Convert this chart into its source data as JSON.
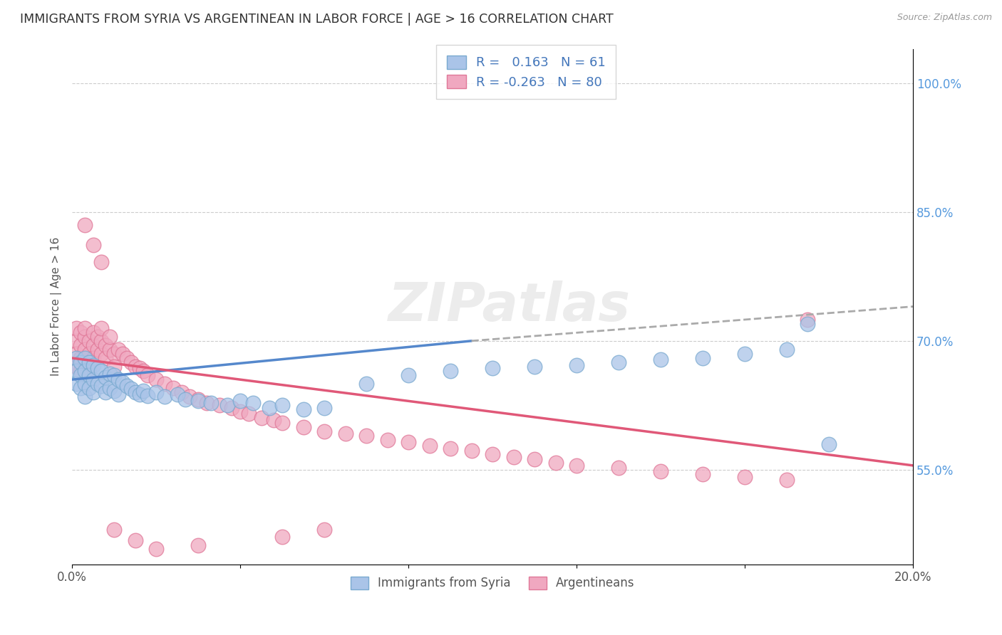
{
  "title": "IMMIGRANTS FROM SYRIA VS ARGENTINEAN IN LABOR FORCE | AGE > 16 CORRELATION CHART",
  "source": "Source: ZipAtlas.com",
  "ylabel": "In Labor Force | Age > 16",
  "xlim": [
    0.0,
    0.2
  ],
  "ylim": [
    0.44,
    1.04
  ],
  "xtick_positions": [
    0.0,
    0.04,
    0.08,
    0.12,
    0.16,
    0.2
  ],
  "xticklabels": [
    "0.0%",
    "",
    "",
    "",
    "",
    "20.0%"
  ],
  "yticks_right": [
    1.0,
    0.85,
    0.7,
    0.55
  ],
  "ytick_right_labels": [
    "100.0%",
    "85.0%",
    "70.0%",
    "55.0%"
  ],
  "R_syria": 0.163,
  "N_syria": 61,
  "R_arg": -0.263,
  "N_arg": 80,
  "color_syria_fill": "#aac4e8",
  "color_syria_edge": "#7aaad0",
  "color_arg_fill": "#f0a8c0",
  "color_arg_edge": "#e07898",
  "color_syria_line": "#5588cc",
  "color_arg_line": "#e05878",
  "watermark": "ZIPatlas",
  "background_color": "#ffffff",
  "grid_color": "#cccccc",
  "title_color": "#333333",
  "legend_text_color": "#4477bb",
  "right_axis_color": "#5599dd",
  "syria_x": [
    0.001,
    0.001,
    0.001,
    0.002,
    0.002,
    0.002,
    0.003,
    0.003,
    0.003,
    0.003,
    0.004,
    0.004,
    0.004,
    0.005,
    0.005,
    0.005,
    0.006,
    0.006,
    0.007,
    0.007,
    0.008,
    0.008,
    0.009,
    0.009,
    0.01,
    0.01,
    0.011,
    0.011,
    0.012,
    0.013,
    0.014,
    0.015,
    0.016,
    0.017,
    0.018,
    0.02,
    0.022,
    0.025,
    0.027,
    0.03,
    0.033,
    0.037,
    0.04,
    0.043,
    0.047,
    0.05,
    0.055,
    0.06,
    0.07,
    0.08,
    0.09,
    0.1,
    0.11,
    0.12,
    0.13,
    0.14,
    0.15,
    0.16,
    0.17,
    0.175,
    0.18
  ],
  "syria_y": [
    0.68,
    0.665,
    0.65,
    0.675,
    0.66,
    0.645,
    0.68,
    0.665,
    0.65,
    0.635,
    0.675,
    0.66,
    0.645,
    0.672,
    0.655,
    0.64,
    0.668,
    0.65,
    0.665,
    0.648,
    0.658,
    0.64,
    0.662,
    0.645,
    0.66,
    0.642,
    0.655,
    0.638,
    0.652,
    0.648,
    0.644,
    0.64,
    0.638,
    0.642,
    0.636,
    0.64,
    0.635,
    0.638,
    0.632,
    0.63,
    0.628,
    0.625,
    0.63,
    0.628,
    0.622,
    0.625,
    0.62,
    0.622,
    0.65,
    0.66,
    0.665,
    0.668,
    0.67,
    0.672,
    0.675,
    0.678,
    0.68,
    0.685,
    0.69,
    0.72,
    0.58
  ],
  "arg_x": [
    0.001,
    0.001,
    0.001,
    0.001,
    0.002,
    0.002,
    0.002,
    0.002,
    0.003,
    0.003,
    0.003,
    0.003,
    0.004,
    0.004,
    0.004,
    0.005,
    0.005,
    0.005,
    0.006,
    0.006,
    0.007,
    0.007,
    0.007,
    0.008,
    0.008,
    0.009,
    0.009,
    0.01,
    0.01,
    0.011,
    0.012,
    0.013,
    0.014,
    0.015,
    0.016,
    0.017,
    0.018,
    0.02,
    0.022,
    0.024,
    0.026,
    0.028,
    0.03,
    0.032,
    0.035,
    0.038,
    0.04,
    0.042,
    0.045,
    0.048,
    0.05,
    0.055,
    0.06,
    0.065,
    0.07,
    0.075,
    0.08,
    0.085,
    0.09,
    0.095,
    0.1,
    0.105,
    0.11,
    0.115,
    0.12,
    0.13,
    0.14,
    0.15,
    0.16,
    0.17,
    0.003,
    0.005,
    0.007,
    0.01,
    0.015,
    0.02,
    0.03,
    0.05,
    0.06,
    0.175
  ],
  "arg_y": [
    0.7,
    0.685,
    0.715,
    0.67,
    0.695,
    0.71,
    0.68,
    0.665,
    0.705,
    0.69,
    0.715,
    0.675,
    0.7,
    0.685,
    0.668,
    0.695,
    0.71,
    0.68,
    0.69,
    0.705,
    0.685,
    0.7,
    0.715,
    0.695,
    0.68,
    0.69,
    0.705,
    0.685,
    0.67,
    0.69,
    0.685,
    0.68,
    0.675,
    0.67,
    0.668,
    0.665,
    0.66,
    0.655,
    0.65,
    0.645,
    0.64,
    0.635,
    0.632,
    0.628,
    0.625,
    0.622,
    0.618,
    0.615,
    0.61,
    0.608,
    0.605,
    0.6,
    0.595,
    0.592,
    0.59,
    0.585,
    0.582,
    0.578,
    0.575,
    0.572,
    0.568,
    0.565,
    0.562,
    0.558,
    0.555,
    0.552,
    0.548,
    0.545,
    0.542,
    0.538,
    0.835,
    0.812,
    0.792,
    0.48,
    0.468,
    0.458,
    0.462,
    0.472,
    0.48,
    0.725
  ],
  "trend_syria_y0": 0.655,
  "trend_syria_y1": 0.73,
  "trend_arg_y0": 0.68,
  "trend_arg_y1": 0.555,
  "trend_syria_dash_x0": 0.095,
  "trend_syria_dash_y0": 0.7,
  "trend_syria_dash_x1": 0.2,
  "trend_syria_dash_y1": 0.74
}
